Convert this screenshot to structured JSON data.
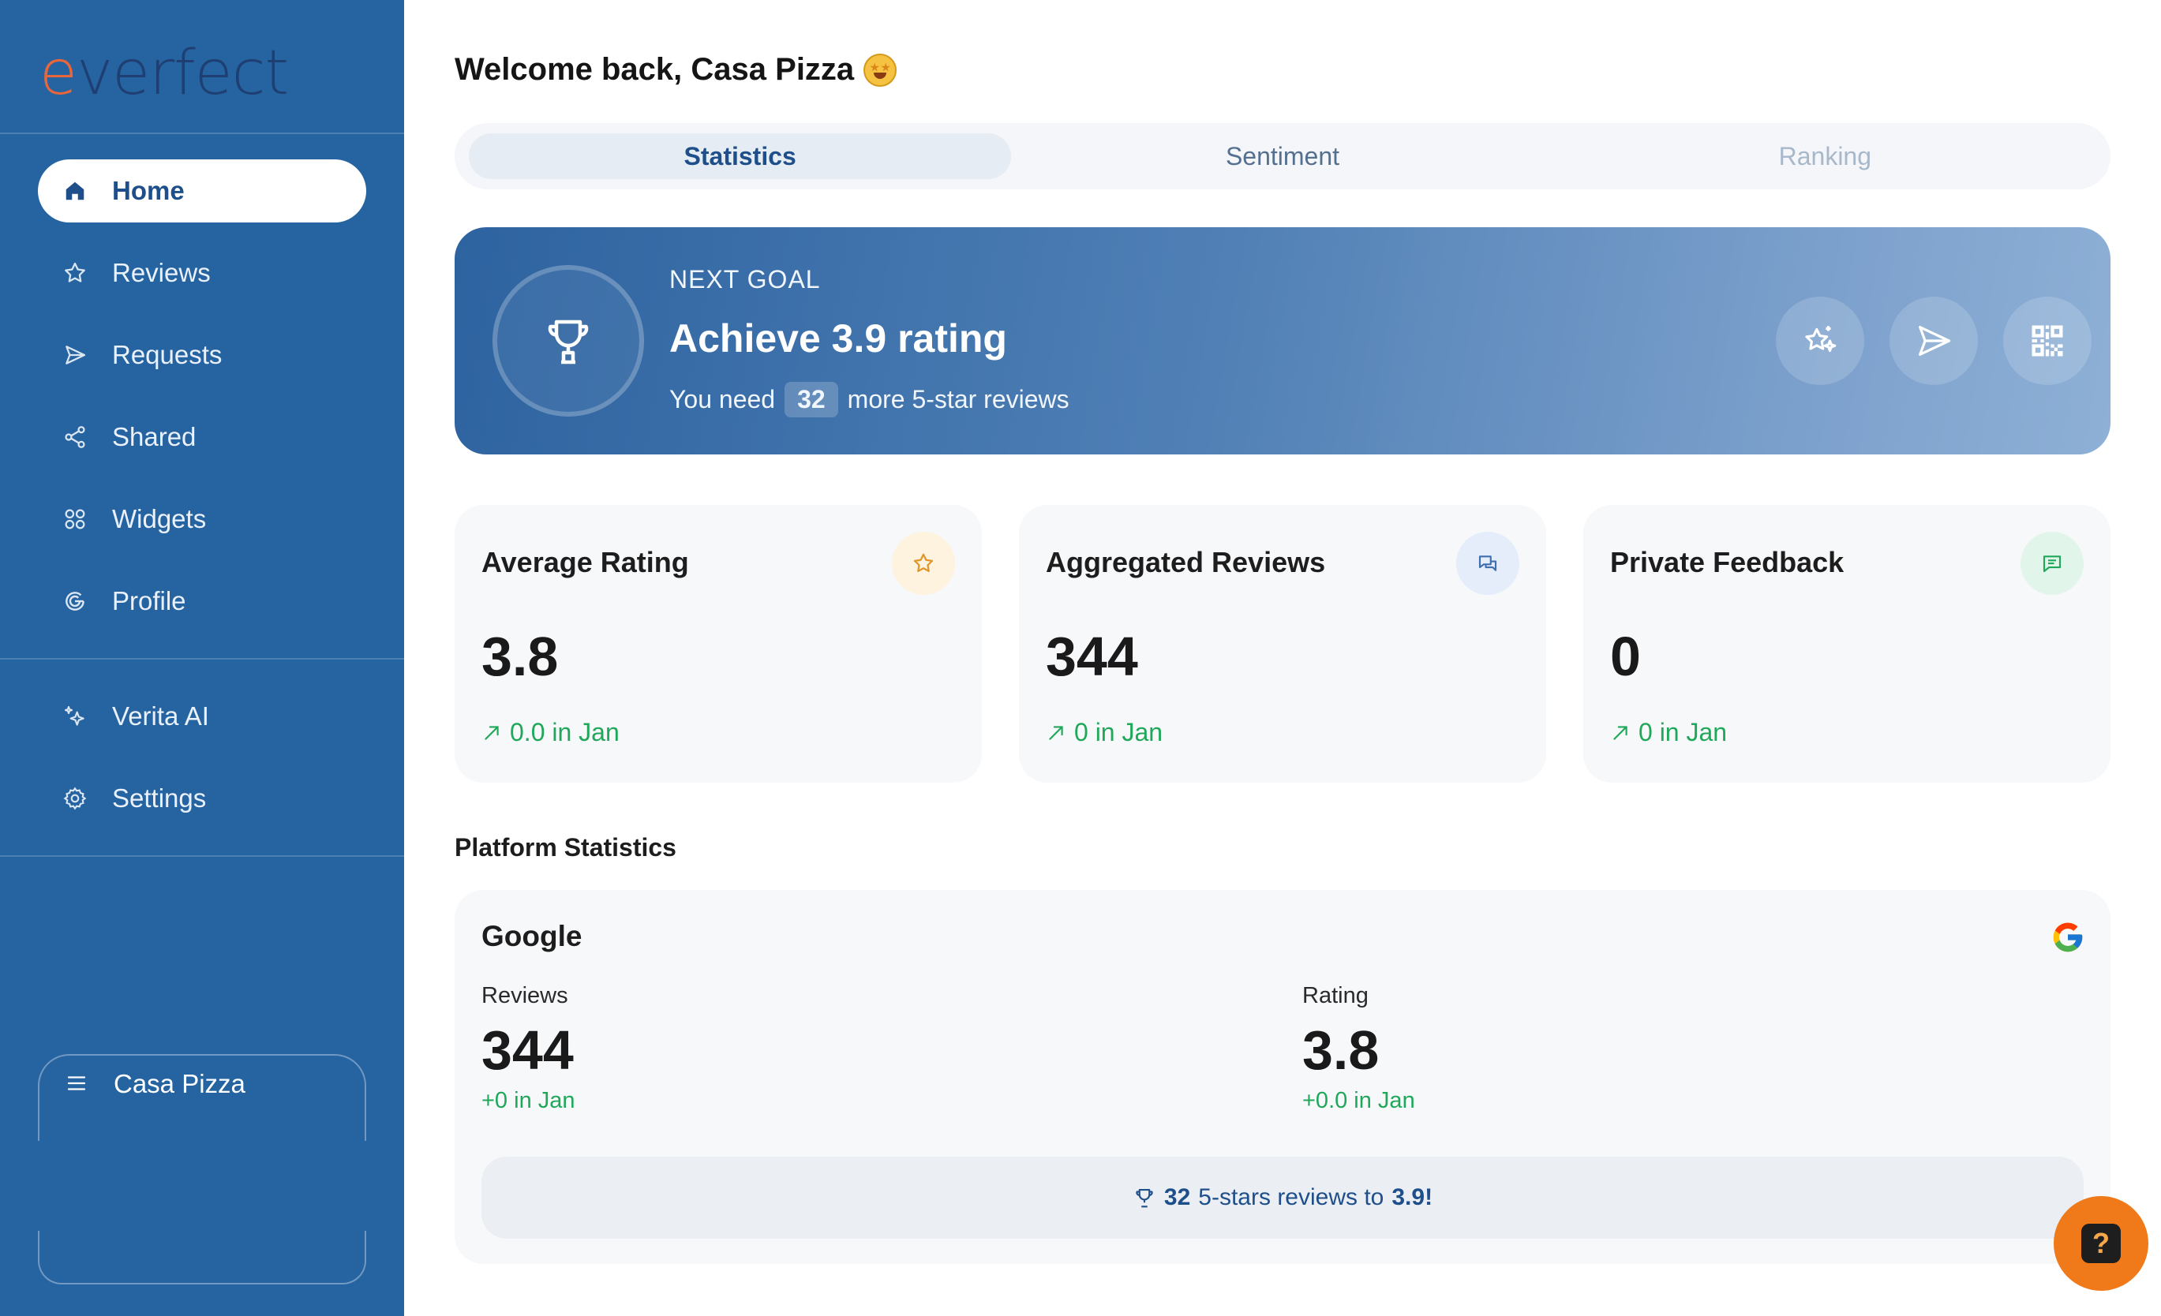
{
  "brand": {
    "name": "everfect",
    "accent_color": "#e8663a",
    "sidebar_color": "#2563a1"
  },
  "sidebar": {
    "items": [
      {
        "label": "Home",
        "icon": "home-icon",
        "active": true
      },
      {
        "label": "Reviews",
        "icon": "star-icon"
      },
      {
        "label": "Requests",
        "icon": "send-icon"
      },
      {
        "label": "Shared",
        "icon": "share-icon"
      },
      {
        "label": "Widgets",
        "icon": "grid-icon"
      },
      {
        "label": "Profile",
        "icon": "google-g-icon"
      },
      {
        "label": "Verita AI",
        "icon": "sparkle-icon"
      },
      {
        "label": "Settings",
        "icon": "gear-icon"
      }
    ],
    "account": {
      "label": "Casa Pizza",
      "icon": "menu-icon"
    }
  },
  "header": {
    "welcome": "Welcome back, Casa Pizza",
    "emoji": "star-struck-emoji"
  },
  "tabs": [
    {
      "label": "Statistics",
      "state": "selected"
    },
    {
      "label": "Sentiment",
      "state": "normal"
    },
    {
      "label": "Ranking",
      "state": "disabled"
    }
  ],
  "goal": {
    "kicker": "NEXT GOAL",
    "title": "Achieve 3.9 rating",
    "sub_prefix": "You need",
    "needed": "32",
    "sub_suffix": "more 5-star reviews",
    "actions": [
      "sparkle-star-icon",
      "send-icon",
      "qr-code-icon"
    ]
  },
  "cards": [
    {
      "title": "Average Rating",
      "value": "3.8",
      "delta": "0.0 in Jan",
      "icon": "star-icon",
      "badge_color": "#fdf3df",
      "icon_color": "#e0962a"
    },
    {
      "title": "Aggregated Reviews",
      "value": "344",
      "delta": "0 in Jan",
      "icon": "chat-bubbles-icon",
      "badge_color": "#e4edf9",
      "icon_color": "#3f6fb0"
    },
    {
      "title": "Private Feedback",
      "value": "0",
      "delta": "0 in Jan",
      "icon": "message-icon",
      "badge_color": "#e2f5ea",
      "icon_color": "#1fa85a"
    }
  ],
  "platform_section": {
    "title": "Platform Statistics"
  },
  "platform": {
    "name": "Google",
    "reviews_label": "Reviews",
    "reviews_value": "344",
    "reviews_change": "+0 in Jan",
    "rating_label": "Rating",
    "rating_value": "3.8",
    "rating_change": "+0.0 in Jan",
    "cta_count": "32",
    "cta_text": "5-stars reviews to",
    "cta_target": "3.9!"
  },
  "help": {
    "label": "?"
  }
}
